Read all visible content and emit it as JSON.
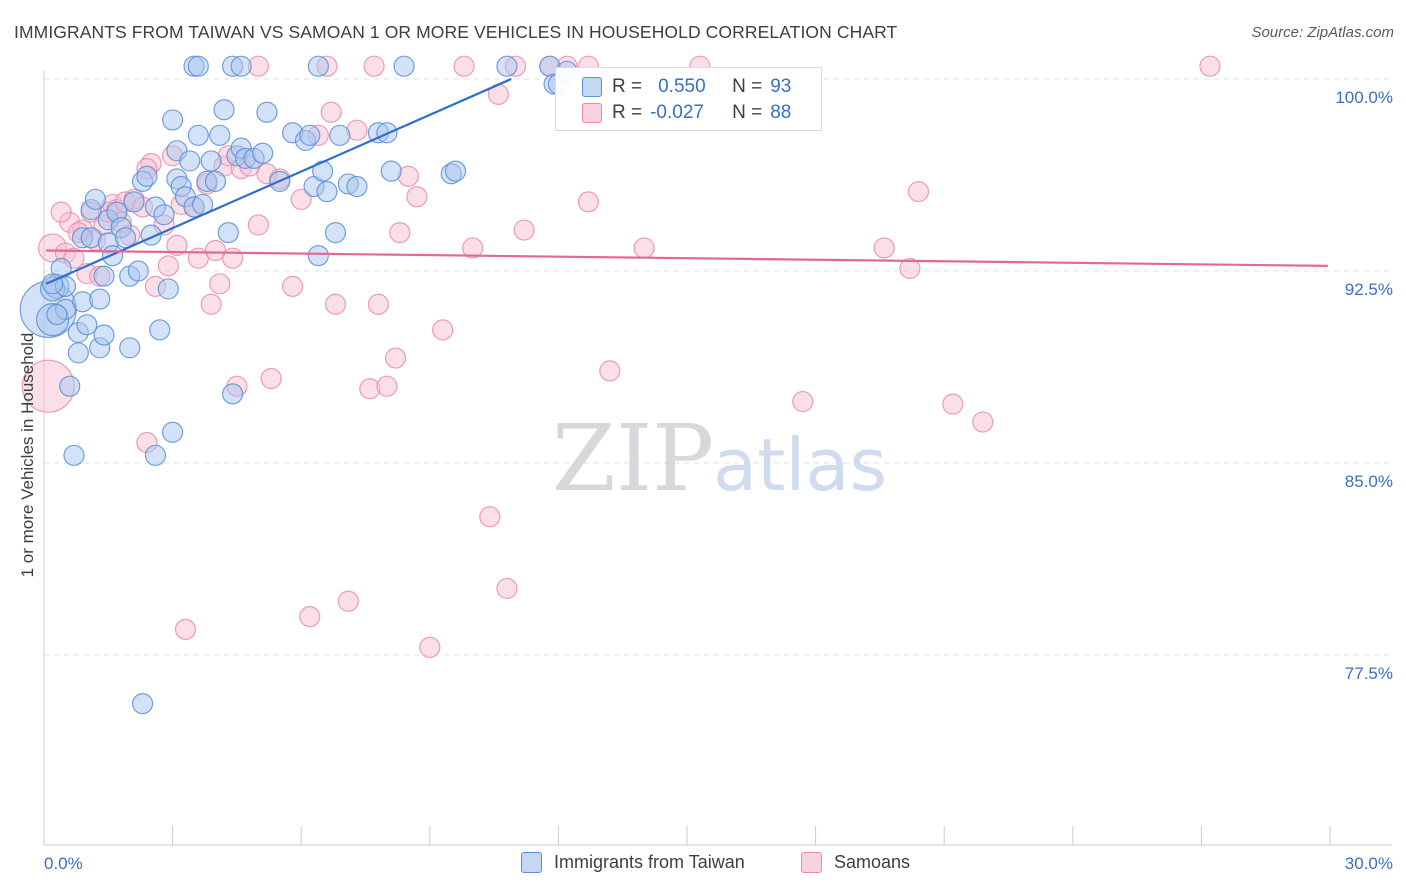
{
  "header": {
    "title": "IMMIGRANTS FROM TAIWAN VS SAMOAN 1 OR MORE VEHICLES IN HOUSEHOLD CORRELATION CHART",
    "source": "Source: ZipAtlas.com"
  },
  "watermark": {
    "zip": "ZIP",
    "atlas": "atlas"
  },
  "legend": {
    "r_label": "R =",
    "n_label": "N =",
    "series": [
      {
        "name": "Immigrants from Taiwan",
        "r": "0.550",
        "n": "93"
      },
      {
        "name": "Samoans",
        "r": "-0.027",
        "n": "88"
      }
    ]
  },
  "colors": {
    "blue_fill": "#a9c6f0",
    "blue_stroke": "#5b8fd6",
    "blue_line": "#2c6fd1",
    "pink_fill": "#f7bfd1",
    "pink_stroke": "#e98cab",
    "pink_line": "#e36991",
    "axis_text": "#3a6fc4",
    "grid": "#dcdfe5"
  },
  "chart_data": {
    "type": "scatter",
    "title": "IMMIGRANTS FROM TAIWAN VS SAMOAN 1 OR MORE VEHICLES IN HOUSEHOLD CORRELATION CHART",
    "xlabel": "",
    "ylabel": "1 or more Vehicles in Household",
    "xlim": [
      0,
      30
    ],
    "ylim": [
      70,
      100.6
    ],
    "x_tick_labels": [
      "0.0%",
      "30.0%"
    ],
    "y_ticks": [
      {
        "value": 100.0,
        "label": "100.0%"
      },
      {
        "value": 92.5,
        "label": "92.5%"
      },
      {
        "value": 85.0,
        "label": "85.0%"
      },
      {
        "value": 77.5,
        "label": "77.5%"
      }
    ],
    "series": [
      {
        "name": "Immigrants from Taiwan",
        "trend": {
          "x0": 0.05,
          "y0": 92.0,
          "x1": 10.9,
          "y1": 100.0
        },
        "points": [
          [
            0.1,
            91.0,
            28
          ],
          [
            0.2,
            90.6,
            16
          ],
          [
            0.3,
            91.9,
            12
          ],
          [
            0.2,
            91.8,
            12
          ],
          [
            0.4,
            92.6,
            10
          ],
          [
            0.5,
            91.9,
            10
          ],
          [
            0.6,
            88.0,
            10
          ],
          [
            0.7,
            85.3,
            10
          ],
          [
            0.8,
            89.3,
            10
          ],
          [
            0.9,
            93.8,
            10
          ],
          [
            0.8,
            90.1,
            10
          ],
          [
            0.9,
            91.3,
            10
          ],
          [
            1.0,
            90.4,
            10
          ],
          [
            1.1,
            93.8,
            10
          ],
          [
            1.1,
            94.9,
            10
          ],
          [
            1.2,
            95.3,
            10
          ],
          [
            1.3,
            91.4,
            10
          ],
          [
            1.4,
            92.3,
            10
          ],
          [
            1.3,
            89.5,
            10
          ],
          [
            1.5,
            93.6,
            10
          ],
          [
            1.5,
            94.5,
            10
          ],
          [
            1.6,
            93.1,
            10
          ],
          [
            1.7,
            94.8,
            10
          ],
          [
            1.8,
            94.2,
            10
          ],
          [
            1.9,
            93.8,
            10
          ],
          [
            2.0,
            92.3,
            10
          ],
          [
            2.1,
            95.2,
            10
          ],
          [
            2.0,
            89.5,
            10
          ],
          [
            2.2,
            92.5,
            10
          ],
          [
            2.3,
            96.0,
            10
          ],
          [
            2.4,
            96.2,
            10
          ],
          [
            2.5,
            93.9,
            10
          ],
          [
            2.6,
            95.0,
            10
          ],
          [
            2.7,
            90.2,
            10
          ],
          [
            2.8,
            94.7,
            10
          ],
          [
            2.9,
            91.8,
            10
          ],
          [
            3.0,
            98.4,
            10
          ],
          [
            3.1,
            97.2,
            10
          ],
          [
            3.1,
            96.1,
            10
          ],
          [
            3.2,
            95.8,
            10
          ],
          [
            3.3,
            95.4,
            10
          ],
          [
            3.4,
            96.8,
            10
          ],
          [
            3.5,
            95.0,
            10
          ],
          [
            3.6,
            97.8,
            10
          ],
          [
            3.7,
            95.1,
            10
          ],
          [
            3.8,
            96.0,
            10
          ],
          [
            3.9,
            96.8,
            10
          ],
          [
            4.0,
            96.0,
            10
          ],
          [
            4.1,
            97.8,
            10
          ],
          [
            4.2,
            98.8,
            10
          ],
          [
            4.3,
            94.0,
            10
          ],
          [
            4.4,
            87.7,
            10
          ],
          [
            4.5,
            97.0,
            10
          ],
          [
            4.6,
            97.3,
            10
          ],
          [
            4.7,
            96.9,
            10
          ],
          [
            4.9,
            96.9,
            10
          ],
          [
            5.1,
            97.1,
            10
          ],
          [
            5.2,
            98.7,
            10
          ],
          [
            5.5,
            96.0,
            10
          ],
          [
            5.8,
            97.9,
            10
          ],
          [
            6.1,
            97.6,
            10
          ],
          [
            6.2,
            97.8,
            10
          ],
          [
            6.3,
            95.8,
            10
          ],
          [
            6.4,
            93.1,
            10
          ],
          [
            6.5,
            96.4,
            10
          ],
          [
            6.6,
            95.6,
            10
          ],
          [
            6.8,
            94.0,
            10
          ],
          [
            6.9,
            97.8,
            10
          ],
          [
            7.1,
            95.9,
            10
          ],
          [
            7.3,
            95.8,
            10
          ],
          [
            7.8,
            97.9,
            10
          ],
          [
            8.0,
            97.9,
            10
          ],
          [
            8.1,
            96.4,
            10
          ],
          [
            8.4,
            100.5,
            10
          ],
          [
            9.5,
            96.3,
            10
          ],
          [
            9.6,
            96.4,
            10
          ],
          [
            10.8,
            100.5,
            10
          ],
          [
            11.8,
            100.5,
            10
          ],
          [
            11.9,
            99.8,
            10
          ],
          [
            12.0,
            99.8,
            10
          ],
          [
            12.2,
            100.3,
            10
          ],
          [
            3.5,
            100.5,
            10
          ],
          [
            3.6,
            100.5,
            10
          ],
          [
            4.4,
            100.5,
            10
          ],
          [
            4.6,
            100.5,
            10
          ],
          [
            6.4,
            100.5,
            10
          ],
          [
            2.3,
            75.6,
            10
          ],
          [
            2.6,
            85.3,
            10
          ],
          [
            3.0,
            86.2,
            10
          ],
          [
            0.2,
            92.0,
            10
          ],
          [
            0.5,
            91.0,
            10
          ],
          [
            1.4,
            90.0,
            10
          ],
          [
            0.3,
            90.8,
            10
          ]
        ]
      },
      {
        "name": "Samoans",
        "trend": {
          "x0": 0.05,
          "y0": 93.3,
          "x1": 29.95,
          "y1": 92.7
        },
        "points": [
          [
            0.1,
            88.0,
            26
          ],
          [
            0.2,
            93.4,
            14
          ],
          [
            0.5,
            93.2,
            10
          ],
          [
            0.6,
            94.4,
            10
          ],
          [
            0.7,
            93.0,
            10
          ],
          [
            0.9,
            94.1,
            10
          ],
          [
            1.0,
            92.4,
            10
          ],
          [
            1.1,
            94.8,
            10
          ],
          [
            1.2,
            93.7,
            10
          ],
          [
            1.3,
            92.3,
            10
          ],
          [
            1.4,
            94.3,
            10
          ],
          [
            1.5,
            94.8,
            10
          ],
          [
            1.6,
            95.1,
            10
          ],
          [
            1.7,
            94.9,
            10
          ],
          [
            1.8,
            94.4,
            10
          ],
          [
            1.9,
            95.2,
            10
          ],
          [
            2.0,
            93.9,
            10
          ],
          [
            2.1,
            95.3,
            10
          ],
          [
            2.3,
            95.0,
            10
          ],
          [
            2.4,
            85.8,
            10
          ],
          [
            2.5,
            96.7,
            10
          ],
          [
            2.6,
            91.9,
            10
          ],
          [
            2.8,
            94.3,
            10
          ],
          [
            2.9,
            92.7,
            10
          ],
          [
            3.0,
            97.0,
            10
          ],
          [
            3.1,
            93.5,
            10
          ],
          [
            3.2,
            95.1,
            10
          ],
          [
            3.3,
            78.5,
            10
          ],
          [
            3.5,
            95.0,
            10
          ],
          [
            3.6,
            93.0,
            10
          ],
          [
            3.8,
            95.9,
            10
          ],
          [
            3.9,
            91.2,
            10
          ],
          [
            4.0,
            93.3,
            10
          ],
          [
            4.1,
            92.0,
            10
          ],
          [
            4.2,
            96.6,
            10
          ],
          [
            4.3,
            97.0,
            10
          ],
          [
            4.4,
            93.0,
            10
          ],
          [
            4.5,
            88.0,
            10
          ],
          [
            4.6,
            96.5,
            10
          ],
          [
            4.8,
            96.6,
            10
          ],
          [
            5.0,
            94.3,
            10
          ],
          [
            5.2,
            96.3,
            10
          ],
          [
            5.3,
            88.3,
            10
          ],
          [
            5.5,
            96.1,
            10
          ],
          [
            5.8,
            91.9,
            10
          ],
          [
            6.0,
            95.3,
            10
          ],
          [
            6.2,
            79.0,
            10
          ],
          [
            6.4,
            97.8,
            10
          ],
          [
            6.7,
            98.7,
            10
          ],
          [
            6.8,
            91.2,
            10
          ],
          [
            7.1,
            79.6,
            10
          ],
          [
            7.3,
            98.0,
            10
          ],
          [
            7.6,
            87.9,
            10
          ],
          [
            7.8,
            91.2,
            10
          ],
          [
            8.0,
            88.0,
            10
          ],
          [
            8.2,
            89.1,
            10
          ],
          [
            8.3,
            94.0,
            10
          ],
          [
            8.5,
            96.2,
            10
          ],
          [
            8.7,
            95.4,
            10
          ],
          [
            9.0,
            77.8,
            10
          ],
          [
            9.3,
            90.2,
            10
          ],
          [
            10.0,
            93.4,
            10
          ],
          [
            10.4,
            82.9,
            10
          ],
          [
            10.6,
            99.4,
            10
          ],
          [
            10.8,
            80.1,
            10
          ],
          [
            11.2,
            94.1,
            10
          ],
          [
            11.8,
            100.5,
            10
          ],
          [
            12.2,
            100.5,
            10
          ],
          [
            12.7,
            95.2,
            10
          ],
          [
            13.2,
            88.6,
            10
          ],
          [
            14.0,
            93.4,
            10
          ],
          [
            15.3,
            100.5,
            10
          ],
          [
            17.7,
            87.4,
            10
          ],
          [
            19.6,
            93.4,
            10
          ],
          [
            20.2,
            92.6,
            10
          ],
          [
            20.4,
            95.6,
            10
          ],
          [
            21.2,
            87.3,
            10
          ],
          [
            21.9,
            86.6,
            10
          ],
          [
            27.2,
            100.5,
            10
          ],
          [
            6.6,
            100.5,
            10
          ],
          [
            7.7,
            100.5,
            10
          ],
          [
            9.8,
            100.5,
            10
          ],
          [
            11.0,
            100.5,
            10
          ],
          [
            12.7,
            100.5,
            10
          ],
          [
            5.0,
            100.5,
            10
          ],
          [
            2.4,
            96.5,
            10
          ],
          [
            0.4,
            94.8,
            10
          ],
          [
            0.8,
            94.0,
            10
          ]
        ]
      }
    ]
  }
}
